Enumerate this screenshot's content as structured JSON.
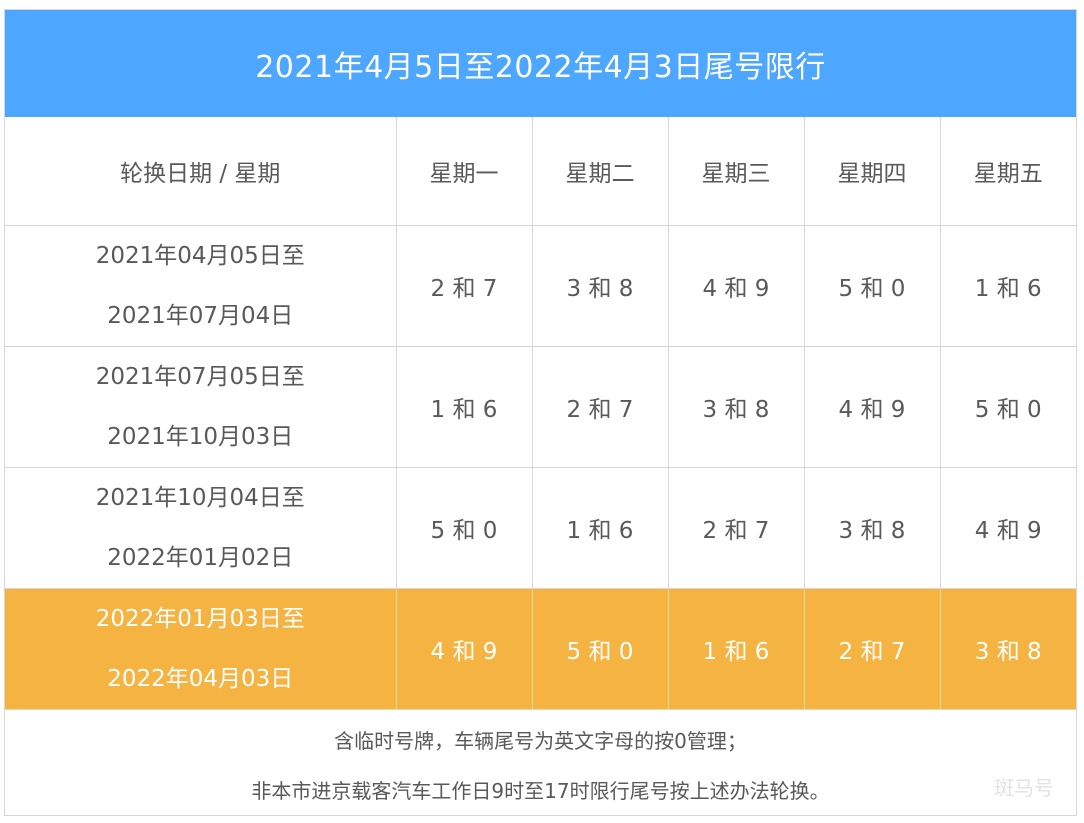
{
  "title": "2021年4月5日至2022年4月3日尾号限行",
  "table": {
    "header": [
      "轮换日期 / 星期",
      "星期一",
      "星期二",
      "星期三",
      "星期四",
      "星期五"
    ],
    "rows": [
      {
        "period_start": "2021年04月05日至",
        "period_end": "2021年07月04日",
        "cells": [
          "2 和 7",
          "3 和 8",
          "4 和 9",
          "5 和 0",
          "1 和 6"
        ]
      },
      {
        "period_start": "2021年07月05日至",
        "period_end": "2021年10月03日",
        "cells": [
          "1 和 6",
          "2 和 7",
          "3 和 8",
          "4 和 9",
          "5 和 0"
        ]
      },
      {
        "period_start": "2021年10月04日至",
        "period_end": "2022年01月02日",
        "cells": [
          "5 和 0",
          "1 和 6",
          "2 和 7",
          "3 和 8",
          "4 和 9"
        ]
      },
      {
        "period_start": "2022年01月03日至",
        "period_end": "2022年04月03日",
        "cells": [
          "4 和 9",
          "5 和 0",
          "1 和 6",
          "2 和 7",
          "3 和 8"
        ],
        "highlighted": true
      }
    ]
  },
  "notes": [
    "含临时号牌，车辆尾号为英文字母的按0管理；",
    "非本市进京载客汽车工作日9时至17时限行尾号按上述办法轮换。"
  ],
  "watermark": "斑马号",
  "colors": {
    "title_bg": "#4da6ff",
    "highlight_bg": "#f5b342",
    "text": "#595959",
    "border": "#d6d6d6"
  }
}
